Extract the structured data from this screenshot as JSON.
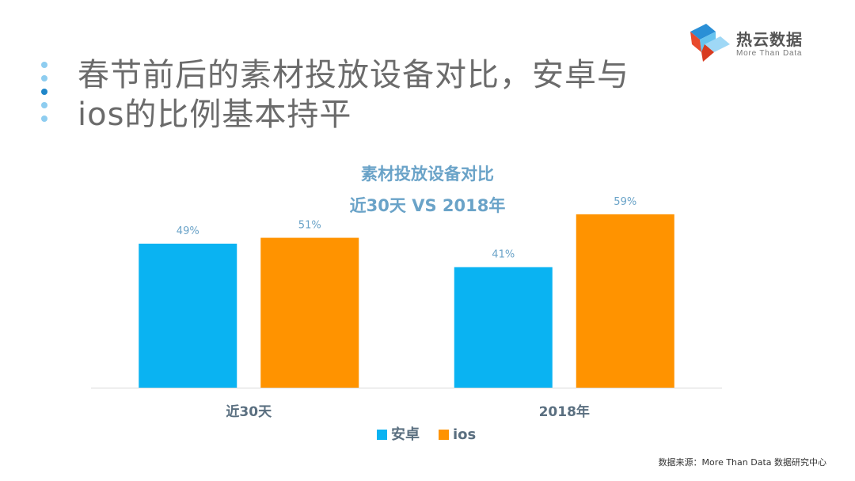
{
  "slide": {
    "title": "春节前后的素材投放设备对比，安卓与ios的比例基本持平",
    "logo": {
      "name": "热云数据",
      "tagline": "More Than Data"
    },
    "source": "数据来源：More Than Data 数据研究中心"
  },
  "chart_data": {
    "type": "bar",
    "title": "素材投放设备对比",
    "subtitle": "近30天 VS 2018年",
    "categories": [
      "近30天",
      "2018年"
    ],
    "series": [
      {
        "name": "安卓",
        "values": [
          49,
          41
        ],
        "color": "#0ab3f2"
      },
      {
        "name": "ios",
        "values": [
          51,
          59
        ],
        "color": "#ff9300"
      }
    ],
    "value_suffix": "%",
    "ylim": [
      0,
      70
    ],
    "grid": false,
    "legend": "bottom",
    "data_labels": true,
    "colors": {
      "axis": "#d9d9d9",
      "label": "#6aa3c8",
      "category": "#5a6f80"
    }
  }
}
